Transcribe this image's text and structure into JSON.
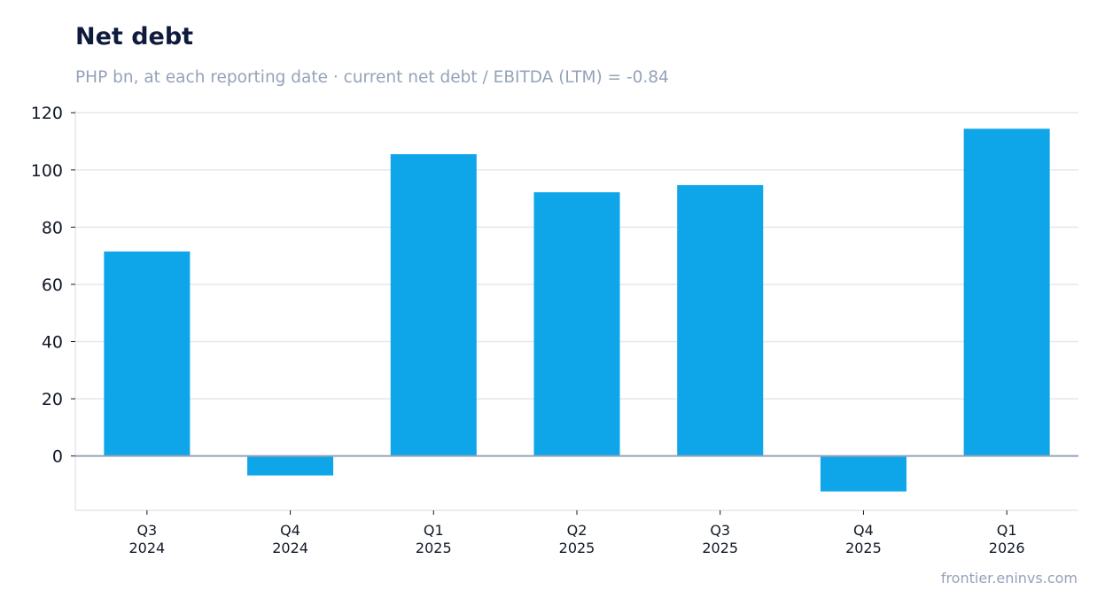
{
  "chart_data": {
    "type": "bar",
    "title": "Net debt",
    "subtitle": "PHP bn, at each reporting date · current net debt / EBITDA (LTM) = -0.84",
    "categories": [
      [
        "Q3",
        "2024"
      ],
      [
        "Q4",
        "2024"
      ],
      [
        "Q1",
        "2025"
      ],
      [
        "Q2",
        "2025"
      ],
      [
        "Q3",
        "2025"
      ],
      [
        "Q4",
        "2025"
      ],
      [
        "Q1",
        "2026"
      ]
    ],
    "values": [
      71.5,
      -6.8,
      105.5,
      92.2,
      94.7,
      -12.4,
      114.4
    ],
    "ylim": [
      -19,
      121
    ],
    "yticks": [
      0,
      20,
      40,
      60,
      80,
      100,
      120
    ],
    "grid": true,
    "bar_color": "#0ea5e9"
  },
  "footer": {
    "source": "frontier.eninvs.com"
  },
  "colors": {
    "title": "#0f1b3d",
    "muted": "#94a3b8",
    "grid": "#e5e7eb",
    "zero_line": "#94a3b8"
  }
}
